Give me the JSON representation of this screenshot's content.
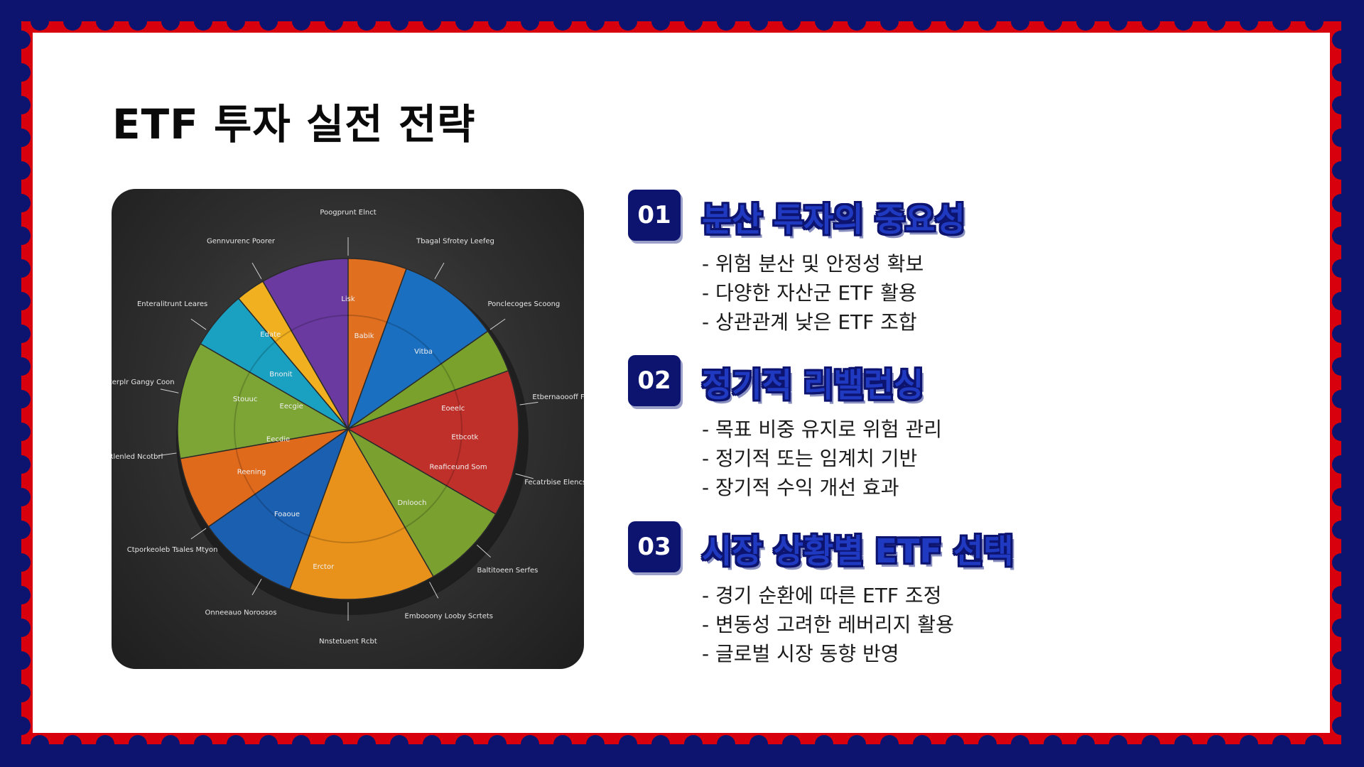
{
  "slide": {
    "title": "ETF 투자 실전 전략",
    "colors": {
      "navy": "#0d1470",
      "red": "#d8000c",
      "paper": "#ffffff",
      "heading_fill": "#1f3ac0"
    }
  },
  "image": {
    "description_icon": "pie-chart-illustration",
    "labels": {
      "outer": [
        "Poogprunt Elnct",
        "Tbagal Sfrotey Leefeg",
        "Ponclecoges Scoong",
        "Etbernaoooff FT",
        "Fecatrbise Elencs",
        "Baltitoeen Serfes",
        "Embooony Looby Scrtets",
        "Nnstetuent Rcbt",
        "Onneeauo Noroosos",
        "Ctporkeoleb Tsales Mtyon",
        "Rlenled Ncotbrl",
        "Etterplr Gangy Coon",
        "Enteralitrunt Leares",
        "Gennvurenc Poorer"
      ],
      "slices": [
        "Lisk",
        "Edate",
        "Stouuc",
        "Bnonit",
        "Babik",
        "Vitba",
        "Eoeelc",
        "Etbcotk",
        "Reaficeund Som",
        "Dnlooch",
        "Eecdie",
        "Eecgie",
        "Reening",
        "Foaoue",
        "Erctor"
      ]
    }
  },
  "sections": [
    {
      "number": "01",
      "heading": "분산 투자의 중요성",
      "bullets": [
        "- 위험 분산 및 안정성 확보",
        "- 다양한 자산군 ETF 활용",
        "- 상관관계 낮은 ETF 조합"
      ]
    },
    {
      "number": "02",
      "heading": "정기적 리밸런싱",
      "bullets": [
        "- 목표 비중 유지로 위험 관리",
        "- 정기적 또는 임계치 기반",
        "- 장기적 수익 개선 효과"
      ]
    },
    {
      "number": "03",
      "heading": "시장 상황별 ETF 선택",
      "bullets": [
        "- 경기 순환에 따른 ETF 조정",
        "- 변동성 고려한 레버리지 활용",
        "- 글로벌 시장 동향 반영"
      ]
    }
  ]
}
